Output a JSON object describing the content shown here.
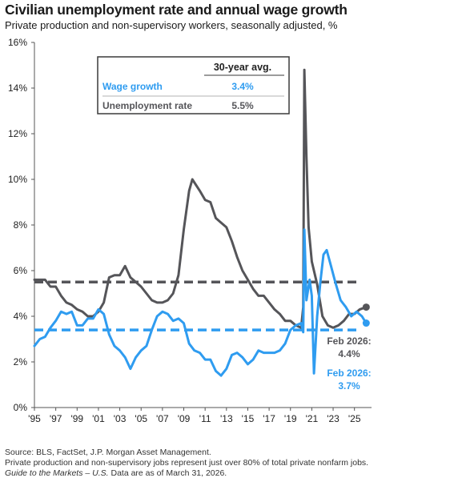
{
  "header": {
    "title": "Civilian unemployment rate and annual wage growth",
    "subtitle": "Private production and non-supervisory workers, seasonally adjusted, %"
  },
  "colors": {
    "unemployment": "#555559",
    "wage": "#2f9cf0",
    "text_dark": "#555559",
    "text_blue": "#2f9cf0"
  },
  "chart_data": {
    "type": "line",
    "ylim": [
      0,
      16
    ],
    "xlim": [
      1995,
      2026.6
    ],
    "y_ticks": [
      "0%",
      "2%",
      "4%",
      "6%",
      "8%",
      "10%",
      "12%",
      "14%",
      "16%"
    ],
    "x_ticks": [
      "'95",
      "'97",
      "'99",
      "'01",
      "'03",
      "'05",
      "'07",
      "'09",
      "'11",
      "'13",
      "'15",
      "'17",
      "'19",
      "'21",
      "'23",
      "'25"
    ],
    "series": [
      {
        "name": "Unemployment rate",
        "color": "#555559",
        "points": [
          [
            1995.0,
            5.6
          ],
          [
            1995.5,
            5.6
          ],
          [
            1996.0,
            5.6
          ],
          [
            1996.5,
            5.3
          ],
          [
            1997.0,
            5.3
          ],
          [
            1997.5,
            4.9
          ],
          [
            1998.0,
            4.6
          ],
          [
            1998.5,
            4.5
          ],
          [
            1999.0,
            4.3
          ],
          [
            1999.5,
            4.2
          ],
          [
            2000.0,
            4.0
          ],
          [
            2000.5,
            4.0
          ],
          [
            2001.0,
            4.2
          ],
          [
            2001.5,
            4.6
          ],
          [
            2002.0,
            5.7
          ],
          [
            2002.5,
            5.8
          ],
          [
            2003.0,
            5.8
          ],
          [
            2003.5,
            6.2
          ],
          [
            2004.0,
            5.7
          ],
          [
            2004.5,
            5.5
          ],
          [
            2005.0,
            5.3
          ],
          [
            2005.5,
            5.0
          ],
          [
            2006.0,
            4.7
          ],
          [
            2006.5,
            4.6
          ],
          [
            2007.0,
            4.6
          ],
          [
            2007.5,
            4.7
          ],
          [
            2008.0,
            5.0
          ],
          [
            2008.5,
            5.8
          ],
          [
            2009.0,
            7.8
          ],
          [
            2009.5,
            9.5
          ],
          [
            2009.8,
            10.0
          ],
          [
            2010.5,
            9.5
          ],
          [
            2011.0,
            9.1
          ],
          [
            2011.5,
            9.0
          ],
          [
            2012.0,
            8.3
          ],
          [
            2012.5,
            8.1
          ],
          [
            2013.0,
            7.9
          ],
          [
            2013.5,
            7.3
          ],
          [
            2014.0,
            6.6
          ],
          [
            2014.5,
            6.0
          ],
          [
            2015.0,
            5.6
          ],
          [
            2015.5,
            5.2
          ],
          [
            2016.0,
            4.9
          ],
          [
            2016.5,
            4.9
          ],
          [
            2017.0,
            4.6
          ],
          [
            2017.5,
            4.3
          ],
          [
            2018.0,
            4.1
          ],
          [
            2018.5,
            3.8
          ],
          [
            2019.0,
            3.8
          ],
          [
            2019.5,
            3.6
          ],
          [
            2020.0,
            3.5
          ],
          [
            2020.2,
            4.4
          ],
          [
            2020.3,
            14.8
          ],
          [
            2020.5,
            11.0
          ],
          [
            2020.7,
            7.9
          ],
          [
            2021.0,
            6.4
          ],
          [
            2021.5,
            5.4
          ],
          [
            2022.0,
            4.0
          ],
          [
            2022.5,
            3.6
          ],
          [
            2023.0,
            3.5
          ],
          [
            2023.5,
            3.6
          ],
          [
            2024.0,
            3.8
          ],
          [
            2024.5,
            4.1
          ],
          [
            2025.0,
            4.1
          ],
          [
            2025.5,
            4.3
          ],
          [
            2026.1,
            4.4
          ]
        ]
      },
      {
        "name": "Wage growth",
        "color": "#2f9cf0",
        "points": [
          [
            1995.0,
            2.7
          ],
          [
            1995.5,
            3.0
          ],
          [
            1996.0,
            3.1
          ],
          [
            1996.5,
            3.5
          ],
          [
            1997.0,
            3.8
          ],
          [
            1997.5,
            4.2
          ],
          [
            1998.0,
            4.1
          ],
          [
            1998.5,
            4.2
          ],
          [
            1999.0,
            3.6
          ],
          [
            1999.5,
            3.6
          ],
          [
            2000.0,
            3.9
          ],
          [
            2000.5,
            3.9
          ],
          [
            2001.0,
            4.3
          ],
          [
            2001.5,
            4.1
          ],
          [
            2002.0,
            3.2
          ],
          [
            2002.5,
            2.7
          ],
          [
            2003.0,
            2.5
          ],
          [
            2003.5,
            2.2
          ],
          [
            2004.0,
            1.7
          ],
          [
            2004.5,
            2.2
          ],
          [
            2005.0,
            2.5
          ],
          [
            2005.5,
            2.7
          ],
          [
            2006.0,
            3.4
          ],
          [
            2006.5,
            4.0
          ],
          [
            2007.0,
            4.2
          ],
          [
            2007.5,
            4.1
          ],
          [
            2008.0,
            3.8
          ],
          [
            2008.5,
            3.9
          ],
          [
            2009.0,
            3.7
          ],
          [
            2009.5,
            2.8
          ],
          [
            2010.0,
            2.5
          ],
          [
            2010.5,
            2.4
          ],
          [
            2011.0,
            2.1
          ],
          [
            2011.5,
            2.1
          ],
          [
            2012.0,
            1.6
          ],
          [
            2012.5,
            1.4
          ],
          [
            2013.0,
            1.7
          ],
          [
            2013.5,
            2.3
          ],
          [
            2014.0,
            2.4
          ],
          [
            2014.5,
            2.2
          ],
          [
            2015.0,
            1.9
          ],
          [
            2015.5,
            2.1
          ],
          [
            2016.0,
            2.5
          ],
          [
            2016.5,
            2.4
          ],
          [
            2017.0,
            2.4
          ],
          [
            2017.5,
            2.4
          ],
          [
            2018.0,
            2.5
          ],
          [
            2018.5,
            2.8
          ],
          [
            2019.0,
            3.4
          ],
          [
            2019.5,
            3.6
          ],
          [
            2020.0,
            3.7
          ],
          [
            2020.2,
            3.3
          ],
          [
            2020.3,
            7.8
          ],
          [
            2020.5,
            4.7
          ],
          [
            2020.8,
            5.6
          ],
          [
            2021.0,
            4.9
          ],
          [
            2021.2,
            1.5
          ],
          [
            2021.5,
            4.0
          ],
          [
            2021.8,
            5.5
          ],
          [
            2022.1,
            6.7
          ],
          [
            2022.4,
            6.9
          ],
          [
            2022.8,
            6.2
          ],
          [
            2023.2,
            5.5
          ],
          [
            2023.7,
            4.7
          ],
          [
            2024.2,
            4.4
          ],
          [
            2024.7,
            4.0
          ],
          [
            2025.2,
            4.2
          ],
          [
            2025.7,
            4.0
          ],
          [
            2026.1,
            3.7
          ]
        ]
      }
    ],
    "reference_lines": [
      {
        "name": "Wage growth 30-year avg",
        "value": 3.4
      },
      {
        "name": "Unemployment rate 30-year avg",
        "value": 5.5
      }
    ],
    "legend_table": {
      "header": "30-year avg.",
      "rows": [
        {
          "label": "Wage growth",
          "value": "3.4%"
        },
        {
          "label": "Unemployment rate",
          "value": "5.5%"
        }
      ]
    },
    "annotations": [
      {
        "line1": "Feb 2026:",
        "line2": "4.4%"
      },
      {
        "line1": "Feb 2026:",
        "line2": "3.7%"
      }
    ]
  },
  "footer": {
    "source": "Source: BLS, FactSet, J.P. Morgan Asset Management.",
    "note": "Private production and non-supervisory jobs represent just over 80% of total private nonfarm jobs.",
    "gtm_italic": "Guide to the Markets – U.S.",
    "gtm_rest": " Data are as of March 31, 2026."
  }
}
